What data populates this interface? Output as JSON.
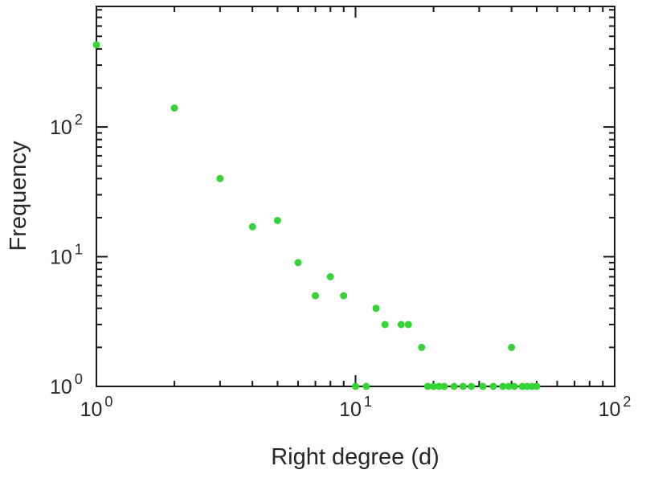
{
  "chart_data": {
    "type": "scatter",
    "title": "",
    "xlabel": "Right degree (d)",
    "ylabel": "Frequency",
    "x_scale": "log",
    "y_scale": "log",
    "xlim": [
      1,
      100
    ],
    "ylim": [
      1,
      850
    ],
    "x_tick_exponents": [
      0,
      1,
      2
    ],
    "y_tick_exponents": [
      0,
      1,
      2
    ],
    "tick_base": "10",
    "grid": false,
    "legend": false,
    "point_color": "#33d433",
    "frame_color": "#1a1a1a",
    "points": [
      [
        1,
        430
      ],
      [
        2,
        140
      ],
      [
        3,
        40
      ],
      [
        4,
        17
      ],
      [
        5,
        19
      ],
      [
        6,
        9
      ],
      [
        7,
        5
      ],
      [
        8,
        7
      ],
      [
        9,
        5
      ],
      [
        12,
        4
      ],
      [
        13,
        3
      ],
      [
        15,
        3
      ],
      [
        16,
        3
      ],
      [
        18,
        2
      ],
      [
        40,
        2
      ],
      [
        10,
        1
      ],
      [
        11,
        1
      ],
      [
        19,
        1
      ],
      [
        20,
        1
      ],
      [
        21,
        1
      ],
      [
        22,
        1
      ],
      [
        24,
        1
      ],
      [
        26,
        1
      ],
      [
        28,
        1
      ],
      [
        31,
        1
      ],
      [
        34,
        1
      ],
      [
        37,
        1
      ],
      [
        39,
        1
      ],
      [
        41,
        1
      ],
      [
        44,
        1
      ],
      [
        46,
        1
      ],
      [
        48,
        1
      ],
      [
        50,
        1
      ]
    ]
  }
}
